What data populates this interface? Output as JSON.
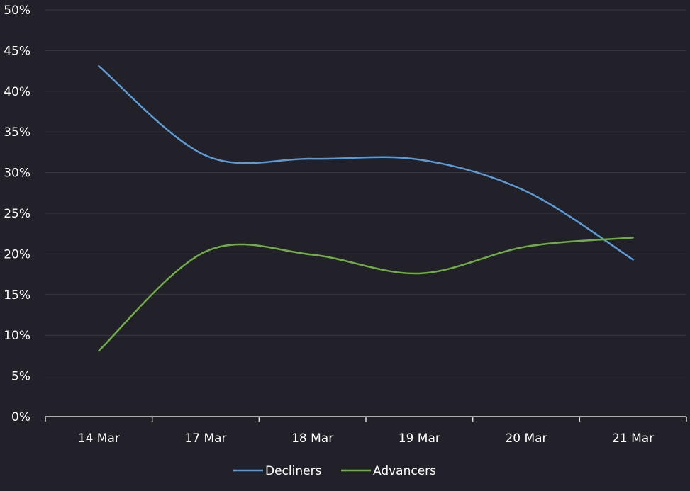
{
  "chart_data": {
    "type": "line",
    "title": "",
    "xlabel": "",
    "ylabel": "",
    "categories": [
      "14 Mar",
      "17 Mar",
      "18 Mar",
      "19 Mar",
      "20 Mar",
      "21 Mar"
    ],
    "y_ticks": [
      "0%",
      "5%",
      "10%",
      "15%",
      "20%",
      "25%",
      "30%",
      "35%",
      "40%",
      "45%",
      "50%"
    ],
    "ylim": [
      0,
      50
    ],
    "y_unit": "%",
    "grid": true,
    "legend_position": "bottom",
    "smooth": true,
    "series": [
      {
        "name": "Decliners",
        "color": "#5b9bd5",
        "values": [
          43.1,
          32.1,
          31.7,
          31.6,
          27.7,
          19.3
        ]
      },
      {
        "name": "Advancers",
        "color": "#70ad47",
        "values": [
          8.1,
          20.3,
          19.9,
          17.6,
          20.9,
          22.0
        ]
      }
    ],
    "colors": {
      "background": "#222029",
      "gridline": "#3b3a44",
      "axis": "#d9d9d9",
      "text": "#ffffff"
    }
  }
}
